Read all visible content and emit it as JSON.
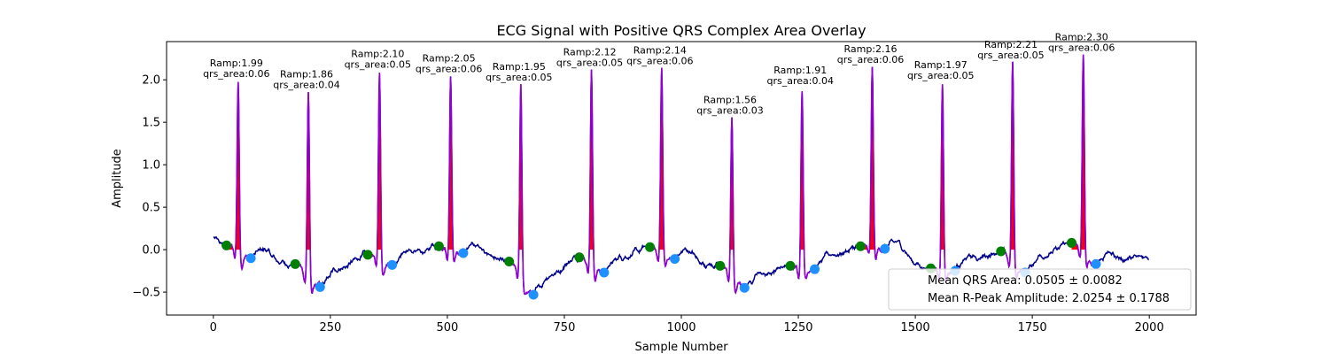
{
  "chart_data": {
    "type": "line",
    "title": "ECG Signal with Positive QRS Complex Area Overlay",
    "xlabel": "Sample Number",
    "ylabel": "Amplitude",
    "xlim": [
      -100,
      2100
    ],
    "ylim": [
      -0.77,
      2.45
    ],
    "xticks": [
      0,
      250,
      500,
      750,
      1000,
      1250,
      1500,
      1750,
      2000
    ],
    "xtick_labels": [
      "0",
      "250",
      "500",
      "750",
      "1000",
      "1250",
      "1500",
      "1750",
      "2000"
    ],
    "yticks": [
      -0.5,
      0.0,
      0.5,
      1.0,
      1.5,
      2.0
    ],
    "ytick_labels": [
      "−0.5",
      "0.0",
      "0.5",
      "1.0",
      "1.5",
      "2.0"
    ],
    "grid": false,
    "colors": {
      "signal": "#00008b",
      "qrs_segment": "#9400d3",
      "qrs_area": "#ff0000",
      "onset_marker": "#008000",
      "offset_marker": "#1e90ff"
    },
    "signal_samples": 2000,
    "beats": [
      {
        "r_peak_x": 53,
        "r_amp": 1.99,
        "ramp_label": "Ramp:1.99",
        "area_label": "qrs_area:0.06",
        "onset": [
          28,
          0.05
        ],
        "offset": [
          80,
          -0.1
        ]
      },
      {
        "r_peak_x": 203,
        "r_amp": 1.86,
        "ramp_label": "Ramp:1.86",
        "area_label": "qrs_area:0.04",
        "onset": [
          175,
          -0.17
        ],
        "offset": [
          228,
          -0.44
        ]
      },
      {
        "r_peak_x": 355,
        "r_amp": 2.1,
        "ramp_label": "Ramp:2.10",
        "area_label": "qrs_area:0.05",
        "onset": [
          330,
          -0.06
        ],
        "offset": [
          382,
          -0.18
        ]
      },
      {
        "r_peak_x": 507,
        "r_amp": 2.05,
        "ramp_label": "Ramp:2.05",
        "area_label": "qrs_area:0.06",
        "onset": [
          482,
          0.04
        ],
        "offset": [
          534,
          -0.04
        ]
      },
      {
        "r_peak_x": 657,
        "r_amp": 1.95,
        "ramp_label": "Ramp:1.95",
        "area_label": "qrs_area:0.05",
        "onset": [
          632,
          -0.14
        ],
        "offset": [
          684,
          -0.53
        ]
      },
      {
        "r_peak_x": 808,
        "r_amp": 2.12,
        "ramp_label": "Ramp:2.12",
        "area_label": "qrs_area:0.05",
        "onset": [
          782,
          -0.09
        ],
        "offset": [
          835,
          -0.27
        ]
      },
      {
        "r_peak_x": 958,
        "r_amp": 2.14,
        "ramp_label": "Ramp:2.14",
        "area_label": "qrs_area:0.06",
        "onset": [
          933,
          0.03
        ],
        "offset": [
          986,
          -0.11
        ]
      },
      {
        "r_peak_x": 1108,
        "r_amp": 1.56,
        "ramp_label": "Ramp:1.56",
        "area_label": "qrs_area:0.03",
        "onset": [
          1083,
          -0.19
        ],
        "offset": [
          1135,
          -0.45
        ]
      },
      {
        "r_peak_x": 1258,
        "r_amp": 1.91,
        "ramp_label": "Ramp:1.91",
        "area_label": "qrs_area:0.04",
        "onset": [
          1233,
          -0.19
        ],
        "offset": [
          1285,
          -0.23
        ]
      },
      {
        "r_peak_x": 1408,
        "r_amp": 2.16,
        "ramp_label": "Ramp:2.16",
        "area_label": "qrs_area:0.06",
        "onset": [
          1383,
          0.04
        ],
        "offset": [
          1435,
          0.01
        ]
      },
      {
        "r_peak_x": 1558,
        "r_amp": 1.97,
        "ramp_label": "Ramp:1.97",
        "area_label": "qrs_area:0.05",
        "onset": [
          1533,
          -0.22
        ],
        "offset": [
          1585,
          -0.25
        ]
      },
      {
        "r_peak_x": 1708,
        "r_amp": 2.21,
        "ramp_label": "Ramp:2.21",
        "area_label": "qrs_area:0.05",
        "onset": [
          1683,
          -0.02
        ],
        "offset": [
          1735,
          -0.27
        ]
      },
      {
        "r_peak_x": 1859,
        "r_amp": 2.3,
        "ramp_label": "Ramp:2.30",
        "area_label": "qrs_area:0.06",
        "onset": [
          1834,
          0.08
        ],
        "offset": [
          1886,
          -0.17
        ]
      }
    ],
    "legend": {
      "placement": "lower-right",
      "entries": [
        "Mean QRS Area: 0.0505 ± 0.0082",
        "Mean R-Peak Amplitude: 2.0254 ± 0.1788"
      ]
    }
  }
}
